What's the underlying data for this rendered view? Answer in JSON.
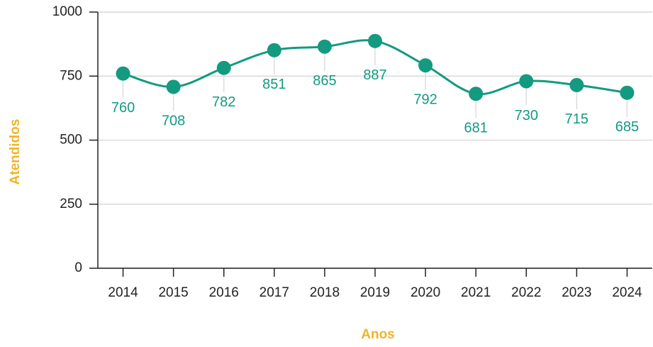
{
  "chart_data": {
    "type": "line",
    "xlabel": "Anos",
    "ylabel": "Atendidos",
    "categories": [
      "2014",
      "2015",
      "2016",
      "2017",
      "2018",
      "2019",
      "2020",
      "2021",
      "2022",
      "2023",
      "2024"
    ],
    "values": [
      760,
      708,
      782,
      851,
      865,
      887,
      792,
      681,
      730,
      715,
      685
    ],
    "color": "#139a80",
    "ylim": [
      0,
      1000
    ],
    "yticks": [
      0,
      250,
      500,
      750,
      1000
    ],
    "grid": true
  }
}
